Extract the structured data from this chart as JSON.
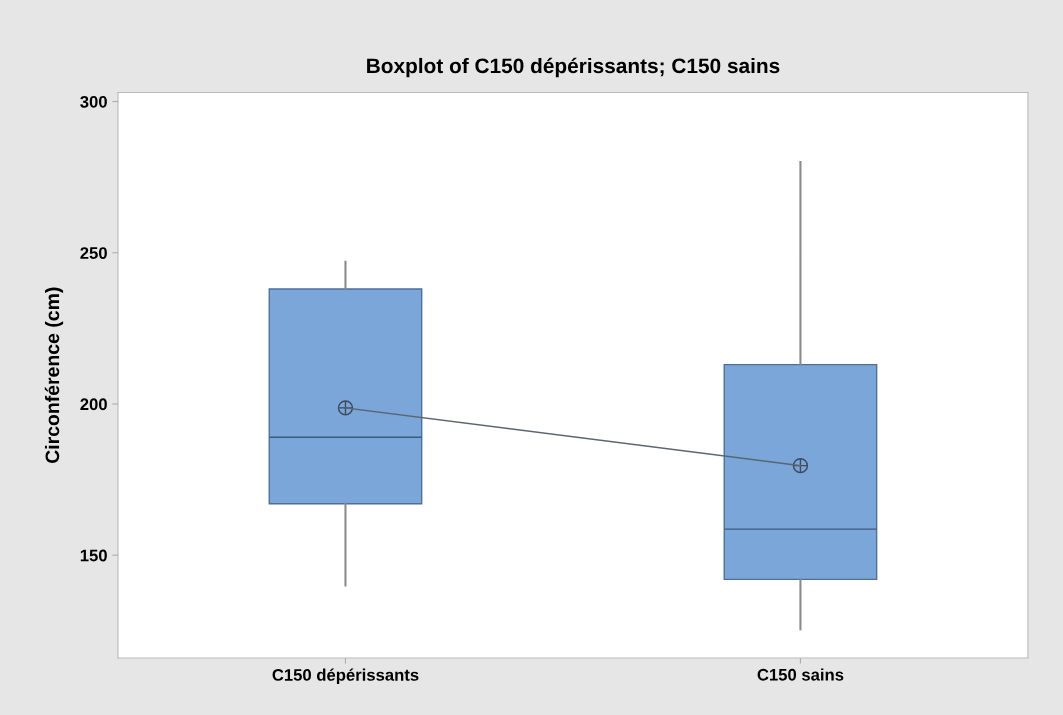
{
  "chart_data": {
    "type": "box",
    "title": "Boxplot of C150 dépérissants; C150 sains",
    "ylabel": "Circonférence (cm)",
    "categories": [
      "C150 dépérissants",
      "C150 sains"
    ],
    "series": [
      {
        "color": "#7ba6d9",
        "boxes": [
          {
            "low": 140,
            "q1": 167,
            "median": 189,
            "q3": 238,
            "high": 247,
            "mean": 198.7
          },
          {
            "low": 125.5,
            "q1": 142,
            "median": 158.6,
            "q3": 213,
            "high": 280,
            "mean": 179.6
          }
        ]
      },
      {
        "type": "line",
        "color": "#5a6670",
        "values": [
          198.7,
          179.6
        ],
        "marker": "none"
      }
    ],
    "ylim": [
      116,
      303
    ],
    "yticks": [
      150,
      200,
      250,
      300
    ],
    "grid": false,
    "legend": false
  }
}
